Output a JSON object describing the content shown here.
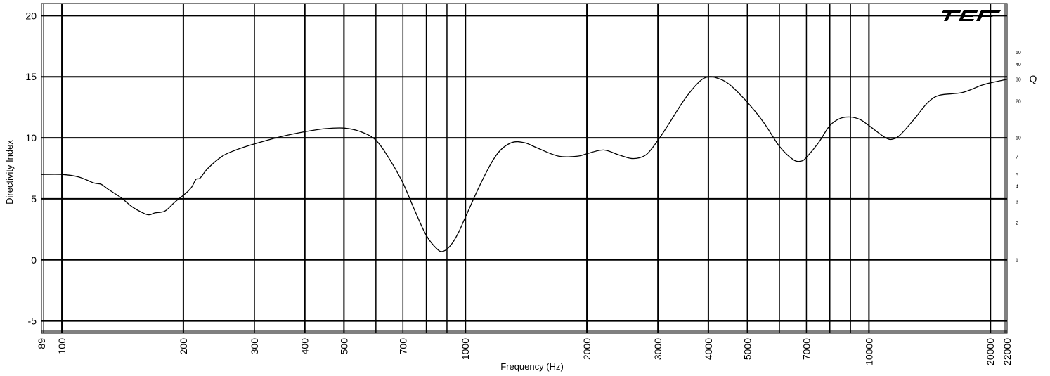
{
  "chart_data": {
    "type": "line",
    "xlabel": "Frequency (Hz)",
    "ylabel": "Directivity Index",
    "right_axis_label": "Q",
    "x_scale": "log",
    "xlim": [
      89,
      22000
    ],
    "ylim": [
      -6,
      21
    ],
    "grid": true,
    "x_ticks": [
      {
        "value": 89,
        "label": "89"
      },
      {
        "value": 100,
        "label": "100"
      },
      {
        "value": 200,
        "label": "200"
      },
      {
        "value": 300,
        "label": "300"
      },
      {
        "value": 400,
        "label": "400"
      },
      {
        "value": 500,
        "label": "500"
      },
      {
        "value": 700,
        "label": "700"
      },
      {
        "value": 1000,
        "label": "1000"
      },
      {
        "value": 2000,
        "label": "2000"
      },
      {
        "value": 3000,
        "label": "3000"
      },
      {
        "value": 4000,
        "label": "4000"
      },
      {
        "value": 5000,
        "label": "5000"
      },
      {
        "value": 7000,
        "label": "7000"
      },
      {
        "value": 10000,
        "label": "10000"
      },
      {
        "value": 20000,
        "label": "20000"
      },
      {
        "value": 22000,
        "label": "22000"
      }
    ],
    "x_gridlines": [
      100,
      200,
      300,
      400,
      500,
      600,
      700,
      800,
      900,
      1000,
      2000,
      3000,
      4000,
      5000,
      6000,
      7000,
      8000,
      9000,
      10000,
      20000
    ],
    "y_ticks": [
      {
        "value": 20,
        "label": "20"
      },
      {
        "value": 15,
        "label": "15"
      },
      {
        "value": 10,
        "label": "10"
      },
      {
        "value": 5,
        "label": "5"
      },
      {
        "value": 0,
        "label": "0"
      },
      {
        "value": -5,
        "label": "-5"
      }
    ],
    "q_ticks": [
      {
        "value": 50,
        "label": "50"
      },
      {
        "value": 40,
        "label": "40"
      },
      {
        "value": 30,
        "label": "30"
      },
      {
        "value": 20,
        "label": "20"
      },
      {
        "value": 10,
        "label": "10"
      },
      {
        "value": 7,
        "label": "7"
      },
      {
        "value": 5,
        "label": "5"
      },
      {
        "value": 4,
        "label": "4"
      },
      {
        "value": 3,
        "label": "3"
      },
      {
        "value": 2,
        "label": "2"
      },
      {
        "value": 1,
        "label": "1"
      }
    ],
    "series": [
      {
        "x": [
          89,
          100,
          110,
          120,
          125,
          130,
          140,
          150,
          160,
          165,
          170,
          180,
          190,
          200,
          205,
          210,
          215,
          220,
          230,
          250,
          270,
          300,
          350,
          400,
          450,
          500,
          550,
          600,
          650,
          700,
          750,
          800,
          850,
          880,
          920,
          960,
          1000,
          1100,
          1200,
          1300,
          1400,
          1500,
          1700,
          1900,
          2000,
          2200,
          2400,
          2600,
          2800,
          3000,
          3200,
          3500,
          3800,
          4000,
          4200,
          4500,
          5000,
          5500,
          6000,
          6500,
          6800,
          7000,
          7500,
          8000,
          8500,
          9000,
          9500,
          10000,
          11000,
          11500,
          12000,
          13000,
          14000,
          15000,
          17000,
          19000,
          20000,
          22000
        ],
        "y": [
          7.0,
          7.0,
          6.8,
          6.3,
          6.2,
          5.8,
          5.1,
          4.3,
          3.8,
          3.7,
          3.85,
          4.0,
          4.7,
          5.3,
          5.6,
          6.0,
          6.6,
          6.7,
          7.5,
          8.5,
          9.0,
          9.5,
          10.1,
          10.5,
          10.75,
          10.8,
          10.5,
          9.8,
          8.2,
          6.3,
          4.0,
          2.0,
          0.9,
          0.7,
          1.2,
          2.2,
          3.5,
          6.5,
          8.7,
          9.6,
          9.6,
          9.2,
          8.5,
          8.5,
          8.7,
          9.0,
          8.6,
          8.3,
          8.6,
          9.8,
          11.2,
          13.2,
          14.6,
          15.0,
          14.9,
          14.4,
          12.9,
          11.2,
          9.3,
          8.2,
          8.1,
          8.4,
          9.6,
          11.0,
          11.6,
          11.7,
          11.5,
          11.0,
          10.0,
          9.9,
          10.3,
          11.6,
          12.9,
          13.5,
          13.7,
          14.3,
          14.5,
          14.8
        ]
      }
    ]
  }
}
